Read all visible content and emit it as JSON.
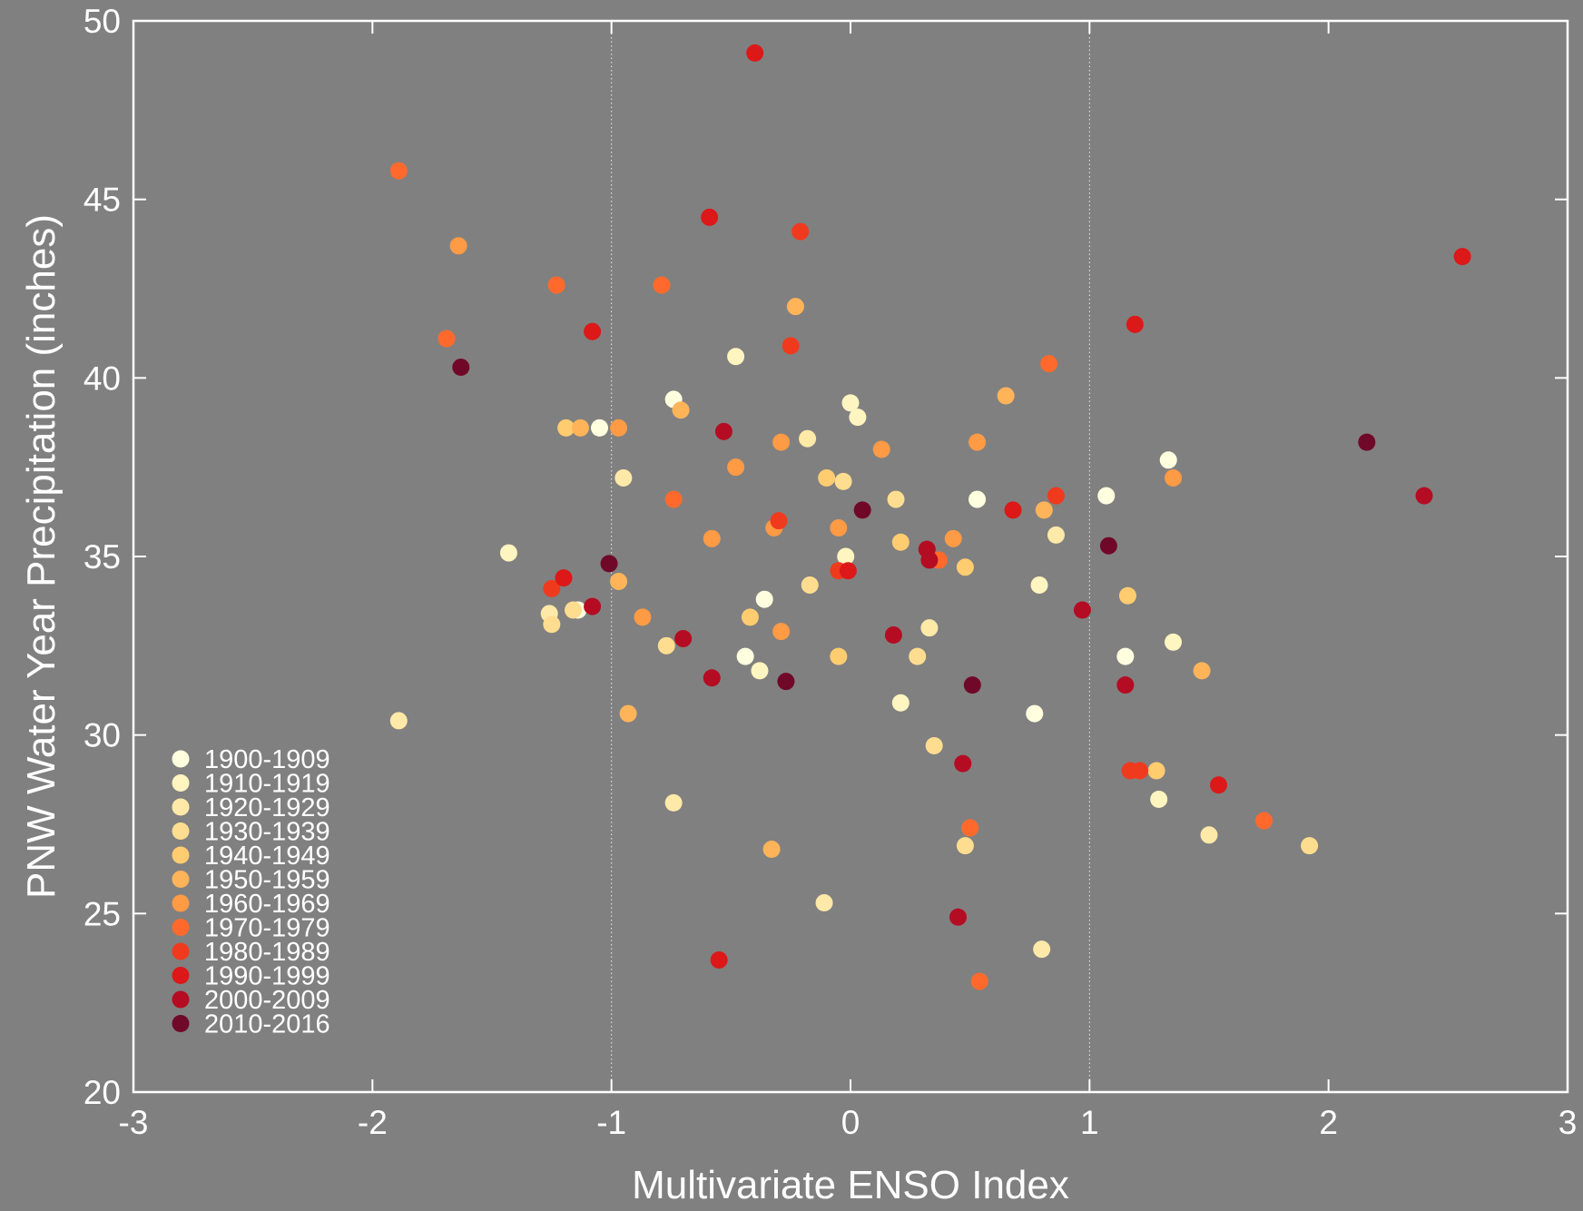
{
  "chart_data": {
    "type": "scatter",
    "title": "",
    "xlabel": "Multivariate ENSO Index",
    "ylabel": "PNW Water Year Precipitation (inches)",
    "xlim": [
      -3,
      3
    ],
    "ylim": [
      20,
      50
    ],
    "xticks": [
      "-3",
      "-2",
      "-1",
      "0",
      "1",
      "2",
      "3"
    ],
    "yticks": [
      "20",
      "25",
      "30",
      "35",
      "40",
      "45",
      "50"
    ],
    "vlines": [
      -1,
      1
    ],
    "grid": false,
    "legend_position": "bottom-left",
    "background": "#808080",
    "series": [
      {
        "name": "1900-1909",
        "color": "#ffffe0",
        "points": [
          [
            -1.05,
            38.6
          ],
          [
            -0.74,
            39.4
          ],
          [
            0.53,
            36.6
          ],
          [
            -1.14,
            33.5
          ],
          [
            -0.44,
            32.2
          ],
          [
            -0.36,
            33.8
          ],
          [
            0.77,
            30.6
          ],
          [
            1.07,
            36.7
          ],
          [
            1.15,
            32.2
          ],
          [
            1.33,
            37.7
          ]
        ]
      },
      {
        "name": "1910-1919",
        "color": "#fff5c0",
        "points": [
          [
            -1.43,
            35.1
          ],
          [
            -0.48,
            40.6
          ],
          [
            0.03,
            38.9
          ],
          [
            0.0,
            39.3
          ],
          [
            -0.02,
            35.0
          ],
          [
            -0.38,
            31.8
          ],
          [
            0.21,
            30.9
          ],
          [
            0.79,
            34.2
          ],
          [
            1.35,
            32.6
          ],
          [
            1.29,
            28.2
          ]
        ]
      },
      {
        "name": "1920-1929",
        "color": "#ffe9a8",
        "points": [
          [
            -1.89,
            30.4
          ],
          [
            -1.26,
            33.4
          ],
          [
            -0.95,
            37.2
          ],
          [
            -0.74,
            28.1
          ],
          [
            -0.18,
            38.3
          ],
          [
            -0.11,
            25.3
          ],
          [
            0.33,
            33.0
          ],
          [
            0.8,
            24.0
          ],
          [
            0.86,
            35.6
          ],
          [
            1.5,
            27.2
          ]
        ]
      },
      {
        "name": "1930-1939",
        "color": "#ffdd90",
        "points": [
          [
            -1.25,
            33.1
          ],
          [
            -1.16,
            33.5
          ],
          [
            -0.77,
            32.5
          ],
          [
            -0.17,
            34.2
          ],
          [
            0.19,
            36.6
          ],
          [
            0.28,
            32.2
          ],
          [
            0.35,
            29.7
          ],
          [
            0.48,
            26.9
          ],
          [
            1.92,
            26.9
          ],
          [
            -0.03,
            37.1
          ]
        ]
      },
      {
        "name": "1940-1949",
        "color": "#ffcc70",
        "points": [
          [
            -1.19,
            38.6
          ],
          [
            -0.1,
            37.2
          ],
          [
            0.21,
            35.4
          ],
          [
            -0.42,
            33.3
          ],
          [
            -0.05,
            32.2
          ],
          [
            0.48,
            34.7
          ],
          [
            1.16,
            33.9
          ],
          [
            1.28,
            29.0
          ]
        ]
      },
      {
        "name": "1950-1959",
        "color": "#ffb45a",
        "points": [
          [
            -1.13,
            38.6
          ],
          [
            -0.97,
            34.3
          ],
          [
            -0.93,
            30.6
          ],
          [
            -0.71,
            39.1
          ],
          [
            -0.23,
            42.0
          ],
          [
            -0.33,
            26.8
          ],
          [
            0.65,
            39.5
          ],
          [
            0.81,
            36.3
          ],
          [
            1.47,
            31.8
          ]
        ]
      },
      {
        "name": "1960-1969",
        "color": "#ff9a45",
        "points": [
          [
            -1.64,
            43.7
          ],
          [
            -0.97,
            38.6
          ],
          [
            -0.87,
            33.3
          ],
          [
            -0.58,
            35.5
          ],
          [
            -0.48,
            37.5
          ],
          [
            -0.32,
            35.8
          ],
          [
            -0.29,
            38.2
          ],
          [
            -0.29,
            32.9
          ],
          [
            -0.05,
            35.8
          ],
          [
            0.13,
            38.0
          ],
          [
            0.43,
            35.5
          ],
          [
            0.53,
            38.2
          ],
          [
            1.35,
            37.2
          ]
        ]
      },
      {
        "name": "1970-1979",
        "color": "#ff6a2c",
        "points": [
          [
            -1.89,
            45.8
          ],
          [
            -1.69,
            41.1
          ],
          [
            -1.23,
            42.6
          ],
          [
            -0.79,
            42.6
          ],
          [
            -0.74,
            36.6
          ],
          [
            0.37,
            34.9
          ],
          [
            0.5,
            27.4
          ],
          [
            0.54,
            23.1
          ],
          [
            0.83,
            40.4
          ],
          [
            1.73,
            27.6
          ]
        ]
      },
      {
        "name": "1980-1989",
        "color": "#f03a1e",
        "points": [
          [
            -1.25,
            34.1
          ],
          [
            -0.3,
            36.0
          ],
          [
            -0.05,
            34.6
          ],
          [
            0.86,
            36.7
          ],
          [
            1.17,
            29.0
          ],
          [
            1.21,
            29.0
          ],
          [
            -0.25,
            40.9
          ],
          [
            -0.21,
            44.1
          ]
        ]
      },
      {
        "name": "1990-1999",
        "color": "#dc1818",
        "points": [
          [
            -1.08,
            41.3
          ],
          [
            -1.2,
            34.4
          ],
          [
            -0.4,
            49.1
          ],
          [
            -0.59,
            44.5
          ],
          [
            -0.01,
            34.6
          ],
          [
            0.68,
            36.3
          ],
          [
            1.19,
            41.5
          ],
          [
            1.54,
            28.6
          ],
          [
            2.56,
            43.4
          ],
          [
            -0.55,
            23.7
          ]
        ]
      },
      {
        "name": "2000-2009",
        "color": "#b40c22",
        "points": [
          [
            -1.08,
            33.6
          ],
          [
            -0.7,
            32.7
          ],
          [
            -0.58,
            31.6
          ],
          [
            -0.53,
            38.5
          ],
          [
            0.18,
            32.8
          ],
          [
            0.32,
            35.2
          ],
          [
            0.33,
            34.9
          ],
          [
            0.45,
            24.9
          ],
          [
            0.47,
            29.2
          ],
          [
            0.97,
            33.5
          ],
          [
            1.15,
            31.4
          ],
          [
            2.4,
            36.7
          ]
        ]
      },
      {
        "name": "2010-2016",
        "color": "#70082a",
        "points": [
          [
            -1.63,
            40.3
          ],
          [
            -1.01,
            34.8
          ],
          [
            -0.27,
            31.5
          ],
          [
            0.05,
            36.3
          ],
          [
            0.51,
            31.4
          ],
          [
            1.08,
            35.3
          ],
          [
            2.16,
            38.2
          ]
        ]
      }
    ]
  }
}
